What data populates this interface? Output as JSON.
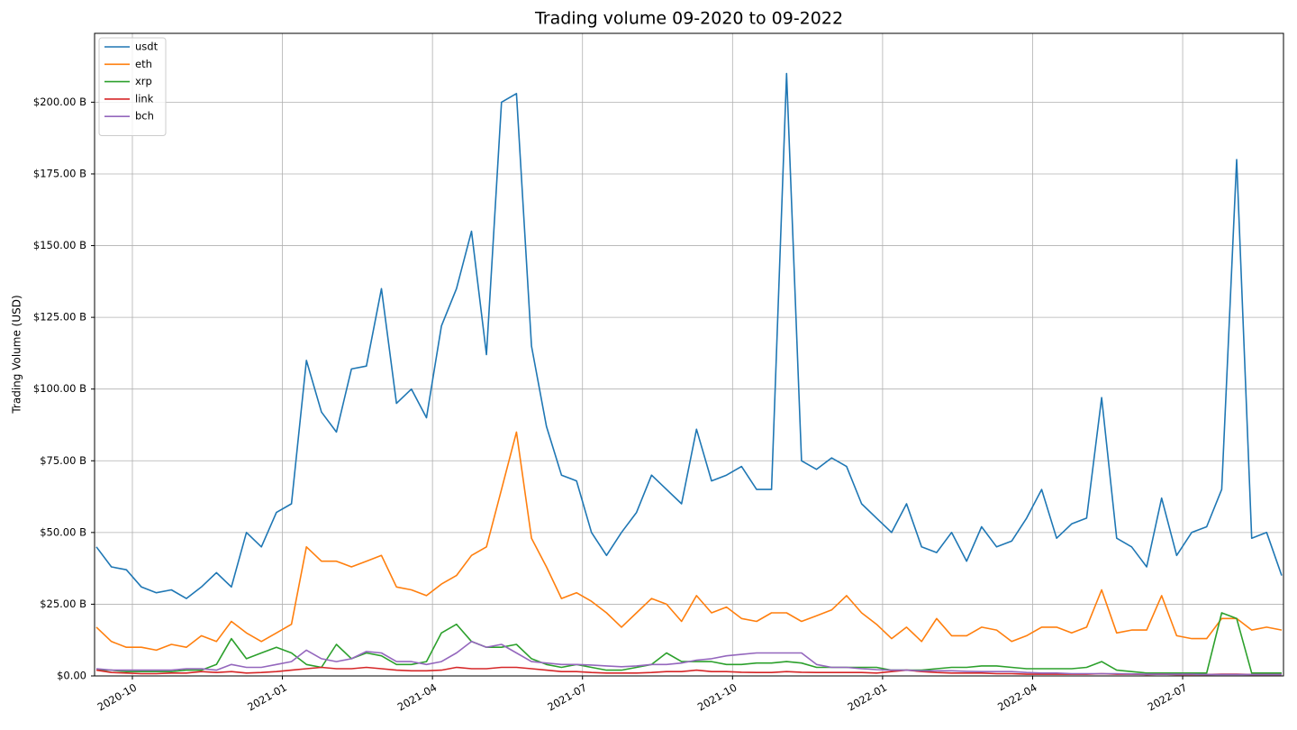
{
  "chart_data": {
    "type": "line",
    "title": "Trading volume 09-2020 to 09-2022",
    "ylabel": "Trading Volume (USD)",
    "x": [
      2020.69,
      2020.715,
      2020.74,
      2020.765,
      2020.79,
      2020.815,
      2020.84,
      2020.865,
      2020.89,
      2020.915,
      2020.94,
      2020.965,
      2020.99,
      2021.015,
      2021.04,
      2021.065,
      2021.09,
      2021.115,
      2021.14,
      2021.165,
      2021.19,
      2021.215,
      2021.24,
      2021.265,
      2021.29,
      2021.315,
      2021.34,
      2021.365,
      2021.39,
      2021.415,
      2021.44,
      2021.465,
      2021.49,
      2021.515,
      2021.54,
      2021.565,
      2021.59,
      2021.615,
      2021.64,
      2021.665,
      2021.69,
      2021.715,
      2021.74,
      2021.765,
      2021.79,
      2021.815,
      2021.84,
      2021.865,
      2021.89,
      2021.915,
      2021.94,
      2021.965,
      2021.99,
      2022.015,
      2022.04,
      2022.065,
      2022.09,
      2022.115,
      2022.14,
      2022.165,
      2022.19,
      2022.215,
      2022.24,
      2022.265,
      2022.29,
      2022.315,
      2022.34,
      2022.365,
      2022.39,
      2022.415,
      2022.44,
      2022.465,
      2022.49,
      2022.515,
      2022.54,
      2022.565,
      2022.59,
      2022.615,
      2022.64,
      2022.665
    ],
    "series": [
      {
        "name": "usdt",
        "color": "#1f77b4",
        "values": [
          45,
          38,
          37,
          31,
          29,
          30,
          27,
          31,
          36,
          31,
          50,
          45,
          57,
          60,
          110,
          92,
          85,
          107,
          108,
          135,
          95,
          100,
          90,
          122,
          135,
          155,
          112,
          200,
          203,
          115,
          87,
          70,
          68,
          50,
          42,
          50,
          57,
          70,
          65,
          60,
          86,
          68,
          70,
          73,
          65,
          65,
          210,
          75,
          72,
          76,
          73,
          60,
          55,
          50,
          60,
          45,
          43,
          50,
          40,
          52,
          45,
          47,
          55,
          65,
          48,
          53,
          55,
          97,
          48,
          45,
          38,
          62,
          42,
          50,
          52,
          65,
          180,
          48,
          50,
          35
        ]
      },
      {
        "name": "eth",
        "color": "#ff7f0e",
        "values": [
          17,
          12,
          10,
          10,
          9,
          11,
          10,
          14,
          12,
          19,
          15,
          12,
          15,
          18,
          45,
          40,
          40,
          38,
          40,
          42,
          31,
          30,
          28,
          32,
          35,
          42,
          45,
          65,
          85,
          48,
          38,
          27,
          29,
          26,
          22,
          17,
          22,
          27,
          25,
          19,
          28,
          22,
          24,
          20,
          19,
          22,
          22,
          19,
          21,
          23,
          28,
          22,
          18,
          13,
          17,
          12,
          20,
          14,
          14,
          17,
          16,
          12,
          14,
          17,
          17,
          15,
          17,
          30,
          15,
          16,
          16,
          28,
          14,
          13,
          13,
          20,
          20,
          16,
          17,
          16
        ]
      },
      {
        "name": "xrp",
        "color": "#2ca02c",
        "values": [
          2,
          2,
          1.5,
          1.5,
          1.5,
          1.5,
          2,
          2,
          4,
          13,
          6,
          8,
          10,
          8,
          4,
          3,
          11,
          6,
          8,
          7,
          4,
          4,
          5,
          15,
          18,
          12,
          10,
          10,
          11,
          6,
          4,
          3,
          4,
          3,
          2,
          2,
          3,
          4,
          8,
          5,
          5,
          5,
          4,
          4,
          4.5,
          4.5,
          5,
          4.5,
          3,
          3,
          3,
          3,
          3,
          2,
          2,
          2,
          2.5,
          3,
          3,
          3.5,
          3.5,
          3,
          2.5,
          2.5,
          2.5,
          2.5,
          3,
          5,
          2,
          1.5,
          1,
          1,
          1,
          1,
          1,
          22,
          20,
          1,
          1,
          1
        ]
      },
      {
        "name": "link",
        "color": "#d62728",
        "values": [
          2,
          1.2,
          1,
          0.8,
          0.8,
          1,
          1,
          1.5,
          1.2,
          1.5,
          1,
          1.2,
          1.5,
          2,
          2.5,
          3,
          2.5,
          2.5,
          3,
          2.5,
          2,
          1.8,
          1.8,
          2,
          3,
          2.5,
          2.5,
          3,
          3,
          2.5,
          2,
          1.5,
          1.5,
          1.2,
          1,
          1,
          1,
          1.2,
          1.5,
          1.5,
          2,
          1.5,
          1.5,
          1.3,
          1.2,
          1.2,
          1.5,
          1.3,
          1.2,
          1.2,
          1.2,
          1.2,
          1,
          1.5,
          2,
          1.5,
          1.2,
          1,
          1,
          1,
          0.8,
          0.8,
          0.6,
          0.6,
          0.6,
          0.6,
          0.6,
          0.8,
          0.6,
          0.6,
          0.5,
          0.6,
          0.5,
          0.5,
          0.5,
          0.6,
          0.6,
          0.5,
          0.5,
          0.5
        ]
      },
      {
        "name": "bch",
        "color": "#9467bd",
        "values": [
          2.5,
          2,
          2,
          2,
          2,
          2,
          2.5,
          2.5,
          2,
          4,
          3,
          3,
          4,
          5,
          9,
          6,
          5,
          6,
          8.5,
          8,
          5,
          5,
          4,
          5,
          8,
          12,
          10,
          11,
          8,
          5,
          4.5,
          4,
          4,
          3.8,
          3.5,
          3.2,
          3.5,
          4,
          4,
          4.5,
          5.5,
          6,
          7,
          7.5,
          8,
          8,
          8,
          8,
          4,
          3,
          3,
          2.5,
          2.2,
          2,
          2,
          1.8,
          1.8,
          1.8,
          1.6,
          1.5,
          1.5,
          1.5,
          1.2,
          1,
          1,
          0.8,
          0.8,
          0.8,
          0.8,
          0.7,
          0.6,
          0.6,
          0.6,
          0.6,
          0.5,
          0.5,
          0.5,
          0.5,
          0.5,
          0.5
        ]
      }
    ],
    "xlim": [
      2020.687,
      2022.668
    ],
    "xticks": [
      {
        "value": 2020.75,
        "label": "2020-10"
      },
      {
        "value": 2021.0,
        "label": "2021-01"
      },
      {
        "value": 2021.25,
        "label": "2021-04"
      },
      {
        "value": 2021.5,
        "label": "2021-07"
      },
      {
        "value": 2021.75,
        "label": "2021-10"
      },
      {
        "value": 2022.0,
        "label": "2022-01"
      },
      {
        "value": 2022.25,
        "label": "2022-04"
      },
      {
        "value": 2022.5,
        "label": "2022-07"
      }
    ],
    "ylim": [
      0,
      224
    ],
    "yticks": [
      {
        "value": 0,
        "label": "$0.00"
      },
      {
        "value": 25,
        "label": "$25.00 B"
      },
      {
        "value": 50,
        "label": "$50.00 B"
      },
      {
        "value": 75,
        "label": "$75.00 B"
      },
      {
        "value": 100,
        "label": "$100.00 B"
      },
      {
        "value": 125,
        "label": "$125.00 B"
      },
      {
        "value": 150,
        "label": "$150.00 B"
      },
      {
        "value": 175,
        "label": "$175.00 B"
      },
      {
        "value": 200,
        "label": "$200.00 B"
      }
    ],
    "grid": true,
    "legend": "upper left"
  }
}
